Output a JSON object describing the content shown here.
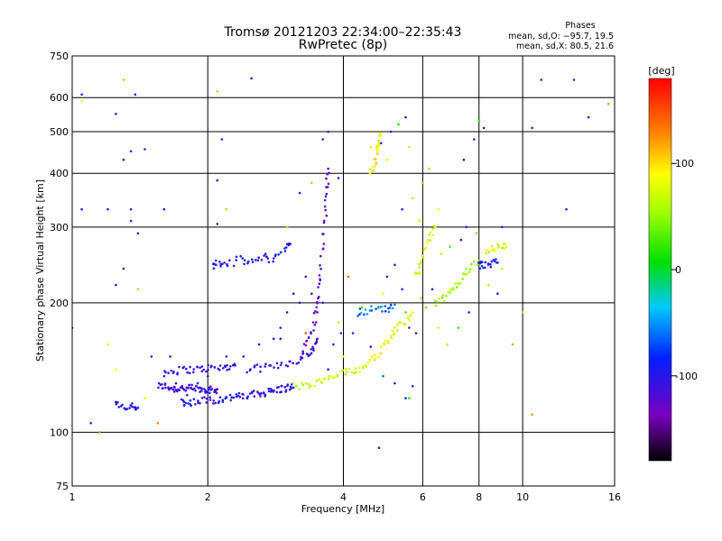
{
  "chart_data": {
    "type": "scatter",
    "title": "Tromsø 20121203 22:34:00–22:35:43",
    "subtitle": "RwPretec (8p)",
    "xlabel": "Frequency [MHz]",
    "ylabel": "Stationary phase Virtual Height [km]",
    "xscale": "log",
    "yscale": "log",
    "xlim": [
      1,
      16
    ],
    "ylim": [
      75,
      750
    ],
    "xticks": [
      1,
      2,
      4,
      6,
      8,
      10,
      16
    ],
    "yticks": [
      75,
      100,
      200,
      300,
      400,
      500,
      600,
      750
    ],
    "grid": true,
    "phase_info": {
      "title": "Phases",
      "line_o": "mean, sd,O: −95.7, 19.5",
      "line_x": "mean, sd,X:  80.5, 21.6"
    },
    "colorbar": {
      "label": "[deg]",
      "range": [
        -180,
        180
      ],
      "ticks": [
        100,
        0,
        -100
      ],
      "colormap": "rainbow"
    },
    "traces": [
      {
        "points": [
          [
            1.55,
            128
          ],
          [
            1.6,
            128
          ],
          [
            1.65,
            127
          ],
          [
            1.7,
            126
          ],
          [
            1.75,
            127
          ],
          [
            1.8,
            126
          ],
          [
            1.85,
            127
          ],
          [
            1.9,
            126
          ],
          [
            1.95,
            126
          ],
          [
            2.0,
            126
          ],
          [
            2.05,
            125
          ],
          [
            2.1,
            126
          ]
        ],
        "phase": -110
      },
      {
        "points": [
          [
            1.6,
            138
          ],
          [
            1.7,
            139
          ],
          [
            1.8,
            140
          ],
          [
            1.9,
            140
          ],
          [
            2.0,
            141
          ],
          [
            2.1,
            141
          ],
          [
            2.2,
            142
          ],
          [
            2.3,
            143
          ]
        ],
        "phase": -110
      },
      {
        "points": [
          [
            1.75,
            118
          ],
          [
            1.8,
            117
          ],
          [
            1.9,
            118
          ],
          [
            2.0,
            119
          ],
          [
            2.1,
            119
          ],
          [
            2.2,
            120
          ],
          [
            2.3,
            121
          ],
          [
            2.4,
            121
          ],
          [
            2.5,
            122
          ],
          [
            2.6,
            123
          ],
          [
            2.7,
            124
          ],
          [
            2.8,
            125
          ],
          [
            2.9,
            126
          ],
          [
            3.0,
            127
          ],
          [
            3.1,
            127
          ]
        ],
        "phase": -100
      },
      {
        "points": [
          [
            2.45,
            140
          ],
          [
            2.6,
            141
          ],
          [
            2.8,
            142
          ],
          [
            3.0,
            145
          ],
          [
            3.2,
            148
          ],
          [
            3.35,
            152
          ],
          [
            3.45,
            158
          ],
          [
            3.5,
            165
          ]
        ],
        "phase": -115
      },
      {
        "points": [
          [
            3.25,
            155
          ],
          [
            3.35,
            165
          ],
          [
            3.45,
            180
          ],
          [
            3.5,
            200
          ],
          [
            3.55,
            230
          ],
          [
            3.6,
            270
          ],
          [
            3.65,
            320
          ],
          [
            3.68,
            370
          ],
          [
            3.7,
            410
          ]
        ],
        "phase": -120
      },
      {
        "points": [
          [
            2.05,
            242
          ],
          [
            2.1,
            248
          ],
          [
            2.2,
            245
          ],
          [
            2.35,
            252
          ],
          [
            2.5,
            248
          ],
          [
            2.65,
            256
          ],
          [
            2.8,
            252
          ],
          [
            2.95,
            268
          ],
          [
            3.05,
            274
          ]
        ],
        "phase": -95
      },
      {
        "points": [
          [
            1.25,
            116
          ],
          [
            1.3,
            114
          ],
          [
            1.35,
            115
          ],
          [
            1.4,
            114
          ]
        ],
        "phase": -95
      },
      {
        "points": [
          [
            3.1,
            128
          ],
          [
            3.3,
            128
          ],
          [
            3.5,
            130
          ],
          [
            3.7,
            133
          ],
          [
            3.9,
            136
          ],
          [
            4.1,
            138
          ],
          [
            4.3,
            140
          ],
          [
            4.5,
            142
          ]
        ],
        "phase": 70
      },
      {
        "points": [
          [
            4.55,
            148
          ],
          [
            4.7,
            150
          ],
          [
            4.9,
            158
          ],
          [
            5.1,
            168
          ],
          [
            5.3,
            176
          ],
          [
            5.5,
            182
          ],
          [
            5.7,
            190
          ]
        ],
        "phase": 85
      },
      {
        "points": [
          [
            4.6,
            400
          ],
          [
            4.7,
            420
          ],
          [
            4.75,
            450
          ],
          [
            4.8,
            470
          ],
          [
            4.85,
            490
          ]
        ],
        "phase": 90
      },
      {
        "points": [
          [
            5.8,
            230
          ],
          [
            5.9,
            240
          ],
          [
            6.0,
            260
          ],
          [
            6.2,
            280
          ],
          [
            6.4,
            300
          ]
        ],
        "phase": 70
      },
      {
        "points": [
          [
            6.4,
            200
          ],
          [
            6.7,
            205
          ],
          [
            7.0,
            215
          ],
          [
            7.3,
            225
          ],
          [
            7.6,
            240
          ],
          [
            8.0,
            250
          ]
        ],
        "phase": 55
      },
      {
        "points": [
          [
            8.3,
            265
          ],
          [
            8.6,
            268
          ],
          [
            8.9,
            270
          ],
          [
            9.2,
            270
          ]
        ],
        "phase": 75
      },
      {
        "points": [
          [
            4.3,
            190
          ],
          [
            4.5,
            192
          ],
          [
            4.8,
            195
          ],
          [
            5.0,
            192
          ],
          [
            5.2,
            198
          ]
        ],
        "phase": -60
      },
      {
        "points": [
          [
            8.0,
            244
          ],
          [
            8.2,
            246
          ],
          [
            8.5,
            247
          ],
          [
            8.8,
            248
          ]
        ],
        "phase": -90
      }
    ],
    "points": [
      [
        1.05,
        610,
        -100
      ],
      [
        1.05,
        590,
        95
      ],
      [
        1.3,
        660,
        110
      ],
      [
        1.38,
        610,
        -90
      ],
      [
        1.25,
        550,
        -110
      ],
      [
        2.5,
        665,
        -100
      ],
      [
        2.1,
        620,
        110
      ],
      [
        2.15,
        480,
        -100
      ],
      [
        2.1,
        385,
        -110
      ],
      [
        2.1,
        305,
        -105
      ],
      [
        1.35,
        450,
        -120
      ],
      [
        1.45,
        455,
        -100
      ],
      [
        1.3,
        430,
        -95
      ],
      [
        1.2,
        330,
        -100
      ],
      [
        1.35,
        330,
        -110
      ],
      [
        1.6,
        330,
        -100
      ],
      [
        1.35,
        310,
        -100
      ],
      [
        1.05,
        330,
        -100
      ],
      [
        1.4,
        290,
        -100
      ],
      [
        1.3,
        240,
        -100
      ],
      [
        1.25,
        220,
        -110
      ],
      [
        1.4,
        215,
        110
      ],
      [
        1.0,
        175,
        -100
      ],
      [
        1.2,
        160,
        80
      ],
      [
        1.25,
        140,
        90
      ],
      [
        1.1,
        105,
        -100
      ],
      [
        1.15,
        100,
        130
      ],
      [
        1.55,
        105,
        130
      ],
      [
        1.45,
        120,
        80
      ],
      [
        1.5,
        150,
        -95
      ],
      [
        2.2,
        330,
        110
      ],
      [
        3.7,
        500,
        -100
      ],
      [
        3.6,
        480,
        -100
      ],
      [
        3.9,
        390,
        -110
      ],
      [
        3.4,
        380,
        110
      ],
      [
        3.2,
        360,
        -100
      ],
      [
        3.0,
        300,
        110
      ],
      [
        4.6,
        460,
        80
      ],
      [
        4.85,
        470,
        -100
      ],
      [
        5.1,
        500,
        -100
      ],
      [
        5.3,
        520,
        15
      ],
      [
        5.5,
        540,
        -100
      ],
      [
        5.6,
        460,
        100
      ],
      [
        5.0,
        430,
        90
      ],
      [
        6.2,
        410,
        110
      ],
      [
        6.0,
        380,
        40
      ],
      [
        7.4,
        430,
        -110
      ],
      [
        7.8,
        480,
        -100
      ],
      [
        8.0,
        530,
        20
      ],
      [
        8.2,
        510,
        -100
      ],
      [
        10.5,
        510,
        -100
      ],
      [
        11.0,
        660,
        -100
      ],
      [
        13.0,
        660,
        -110
      ],
      [
        14.0,
        540,
        -100
      ],
      [
        15.5,
        580,
        120
      ],
      [
        12.5,
        330,
        -100
      ],
      [
        10.0,
        190,
        110
      ],
      [
        9.5,
        160,
        120
      ],
      [
        10.5,
        110,
        120
      ],
      [
        4.8,
        92,
        -100
      ],
      [
        5.5,
        190,
        30
      ],
      [
        5.6,
        175,
        -110
      ],
      [
        5.8,
        170,
        -100
      ],
      [
        6.5,
        175,
        70
      ],
      [
        6.8,
        160,
        50
      ],
      [
        7.2,
        175,
        20
      ],
      [
        7.6,
        190,
        -100
      ],
      [
        5.2,
        245,
        -100
      ],
      [
        5.4,
        215,
        -110
      ],
      [
        5.0,
        230,
        -90
      ],
      [
        4.9,
        210,
        90
      ],
      [
        4.4,
        195,
        30
      ],
      [
        4.2,
        170,
        -100
      ],
      [
        3.9,
        180,
        100
      ],
      [
        3.8,
        160,
        -100
      ],
      [
        4.6,
        158,
        -110
      ],
      [
        4.9,
        135,
        -60
      ],
      [
        5.2,
        130,
        -110
      ],
      [
        5.5,
        120,
        -100
      ],
      [
        5.6,
        120,
        20
      ],
      [
        5.7,
        128,
        -100
      ],
      [
        3.2,
        200,
        -100
      ],
      [
        3.0,
        190,
        -110
      ],
      [
        2.9,
        175,
        -120
      ],
      [
        2.8,
        165,
        -100
      ],
      [
        2.6,
        160,
        -90
      ],
      [
        2.4,
        150,
        -100
      ],
      [
        2.2,
        150,
        -110
      ],
      [
        2.0,
        135,
        -120
      ],
      [
        1.9,
        130,
        -100
      ],
      [
        1.8,
        122,
        -100
      ],
      [
        1.7,
        130,
        -110
      ],
      [
        1.6,
        135,
        -90
      ],
      [
        1.65,
        150,
        -100
      ],
      [
        3.3,
        170,
        150
      ],
      [
        2.9,
        165,
        -100
      ],
      [
        3.6,
        200,
        -100
      ],
      [
        3.5,
        190,
        -110
      ],
      [
        3.4,
        210,
        -120
      ],
      [
        3.3,
        230,
        -100
      ],
      [
        3.1,
        210,
        -110
      ],
      [
        6.6,
        260,
        60
      ],
      [
        6.9,
        270,
        30
      ],
      [
        7.3,
        280,
        -100
      ],
      [
        7.5,
        300,
        -100
      ],
      [
        7.9,
        290,
        40
      ],
      [
        8.4,
        220,
        60
      ],
      [
        9.0,
        300,
        -100
      ],
      [
        9.0,
        240,
        60
      ],
      [
        8.8,
        210,
        -100
      ],
      [
        6.1,
        195,
        40
      ],
      [
        6.3,
        215,
        -100
      ],
      [
        5.95,
        205,
        50
      ],
      [
        6.5,
        330,
        90
      ],
      [
        5.7,
        350,
        60
      ],
      [
        5.9,
        310,
        100
      ],
      [
        5.4,
        330,
        -110
      ],
      [
        4.1,
        230,
        140
      ],
      [
        3.95,
        170,
        -100
      ],
      [
        3.7,
        140,
        -110
      ],
      [
        4.0,
        150,
        90
      ]
    ]
  }
}
